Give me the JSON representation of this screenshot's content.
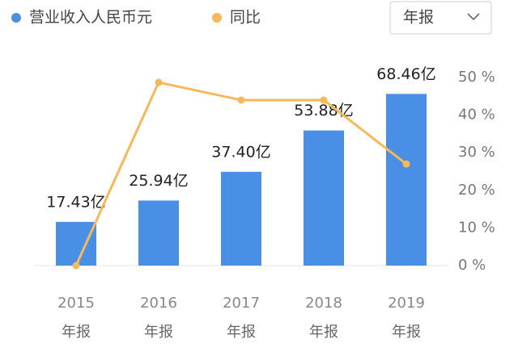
{
  "ui": {
    "period_select": "年报"
  },
  "chart_data": {
    "type": "bar-line",
    "categories": [
      [
        "2015",
        "年报"
      ],
      [
        "2016",
        "年报"
      ],
      [
        "2017",
        "年报"
      ],
      [
        "2018",
        "年报"
      ],
      [
        "2019",
        "年报"
      ]
    ],
    "series": [
      {
        "name": "营业收入人民币元",
        "type": "bar",
        "color": "#4a8fe6",
        "values": [
          17.43,
          25.94,
          37.4,
          53.88,
          68.46
        ],
        "value_labels": [
          "17.43亿",
          "25.94亿",
          "37.40亿",
          "53.88亿",
          "68.46亿"
        ]
      },
      {
        "name": "同比",
        "type": "line",
        "axis": "y2",
        "color": "#f5b95a",
        "values": [
          0,
          48.7,
          44.0,
          44.0,
          27.0
        ]
      }
    ],
    "ylim": [
      0,
      75
    ],
    "y2lim": [
      0,
      50
    ],
    "y2ticks": [
      {
        "value": 0,
        "label": "0 %"
      },
      {
        "value": 10,
        "label": "10 %"
      },
      {
        "value": 20,
        "label": "20 %"
      },
      {
        "value": 30,
        "label": "30 %"
      },
      {
        "value": 40,
        "label": "40 %"
      },
      {
        "value": 50,
        "label": "50 %"
      }
    ]
  }
}
